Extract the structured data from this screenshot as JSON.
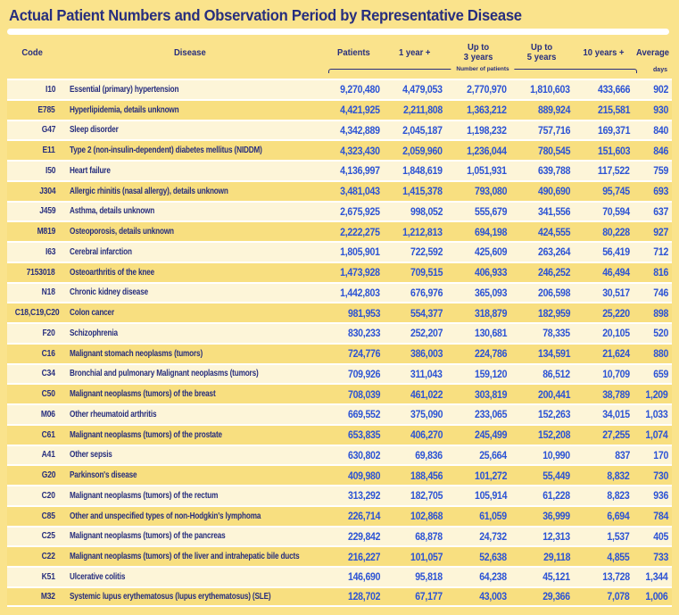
{
  "title": "Actual Patient Numbers and Observation Period by Representative Disease",
  "header": {
    "code": "Code",
    "disease": "Disease",
    "patients": "Patients",
    "y1": "1 year +",
    "y3_line1": "Up to",
    "y3_line2": "3 years",
    "y5_line1": "Up to",
    "y5_line2": "5 years",
    "y10": "10 years +",
    "average": "Average",
    "group_label": "Number of patients",
    "average_unit": "days"
  },
  "colors": {
    "page": "#FAE38C",
    "cream": "#FDF5D8",
    "yellow": "#F8DF80",
    "navy": "#272E7E",
    "blue": "#2C53D5",
    "sep": "#FFFFFF"
  },
  "chart_data": {
    "type": "table",
    "title": "Actual Patient Numbers and Observation Period by Representative Disease",
    "columns": [
      "Code",
      "Disease",
      "Patients",
      "1 year +",
      "Up to 3 years",
      "Up to 5 years",
      "10 years +",
      "Average (days)"
    ],
    "group_note": "Patients through 10 years + columns are number of patients; Average is in days",
    "rows": [
      [
        "I10",
        "Essential (primary) hypertension",
        "9,270,480",
        "4,479,053",
        "2,770,970",
        "1,810,603",
        "433,666",
        "902"
      ],
      [
        "E785",
        "Hyperlipidemia, details unknown",
        "4,421,925",
        "2,211,808",
        "1,363,212",
        "889,924",
        "215,581",
        "930"
      ],
      [
        "G47",
        "Sleep disorder",
        "4,342,889",
        "2,045,187",
        "1,198,232",
        "757,716",
        "169,371",
        "840"
      ],
      [
        "E11",
        "Type 2 (non-insulin-dependent) diabetes mellitus (NIDDM)",
        "4,323,430",
        "2,059,960",
        "1,236,044",
        "780,545",
        "151,603",
        "846"
      ],
      [
        "I50",
        "Heart failure",
        "4,136,997",
        "1,848,619",
        "1,051,931",
        "639,788",
        "117,522",
        "759"
      ],
      [
        "J304",
        "Allergic rhinitis (nasal allergy), details unknown",
        "3,481,043",
        "1,415,378",
        "793,080",
        "490,690",
        "95,745",
        "693"
      ],
      [
        "J459",
        "Asthma, details unknown",
        "2,675,925",
        "998,052",
        "555,679",
        "341,556",
        "70,594",
        "637"
      ],
      [
        "M819",
        "Osteoporosis, details unknown",
        "2,222,275",
        "1,212,813",
        "694,198",
        "424,555",
        "80,228",
        "927"
      ],
      [
        "I63",
        "Cerebral infarction",
        "1,805,901",
        "722,592",
        "425,609",
        "263,264",
        "56,419",
        "712"
      ],
      [
        "7153018",
        "Osteoarthritis of the knee",
        "1,473,928",
        "709,515",
        "406,933",
        "246,252",
        "46,494",
        "816"
      ],
      [
        "N18",
        "Chronic kidney disease",
        "1,442,803",
        "676,976",
        "365,093",
        "206,598",
        "30,517",
        "746"
      ],
      [
        "C18,C19,C20",
        "Colon cancer",
        "981,953",
        "554,377",
        "318,879",
        "182,959",
        "25,220",
        "898"
      ],
      [
        "F20",
        "Schizophrenia",
        "830,233",
        "252,207",
        "130,681",
        "78,335",
        "20,105",
        "520"
      ],
      [
        "C16",
        "Malignant stomach neoplasms (tumors)",
        "724,776",
        "386,003",
        "224,786",
        "134,591",
        "21,624",
        "880"
      ],
      [
        "C34",
        "Bronchial and pulmonary Malignant neoplasms (tumors)",
        "709,926",
        "311,043",
        "159,120",
        "86,512",
        "10,709",
        "659"
      ],
      [
        "C50",
        "Malignant neoplasms (tumors) of the breast",
        "708,039",
        "461,022",
        "303,819",
        "200,441",
        "38,789",
        "1,209"
      ],
      [
        "M06",
        "Other rheumatoid arthritis",
        "669,552",
        "375,090",
        "233,065",
        "152,263",
        "34,015",
        "1,033"
      ],
      [
        "C61",
        "Malignant neoplasms (tumors) of the prostate",
        "653,835",
        "406,270",
        "245,499",
        "152,208",
        "27,255",
        "1,074"
      ],
      [
        "A41",
        "Other sepsis",
        "630,802",
        "69,836",
        "25,664",
        "10,990",
        "837",
        "170"
      ],
      [
        "G20",
        "Parkinson's disease",
        "409,980",
        "188,456",
        "101,272",
        "55,449",
        "8,832",
        "730"
      ],
      [
        "C20",
        "Malignant neoplasms (tumors) of the rectum",
        "313,292",
        "182,705",
        "105,914",
        "61,228",
        "8,823",
        "936"
      ],
      [
        "C85",
        "Other and unspecified types of non-Hodgkin's lymphoma",
        "226,714",
        "102,868",
        "61,059",
        "36,999",
        "6,694",
        "784"
      ],
      [
        "C25",
        "Malignant neoplasms (tumors) of the pancreas",
        "229,842",
        "68,878",
        "24,732",
        "12,313",
        "1,537",
        "405"
      ],
      [
        "C22",
        "Malignant neoplasms (tumors) of the liver and intrahepatic bile ducts",
        "216,227",
        "101,057",
        "52,638",
        "29,118",
        "4,855",
        "733"
      ],
      [
        "K51",
        "Ulcerative colitis",
        "146,690",
        "95,818",
        "64,238",
        "45,121",
        "13,728",
        "1,344"
      ],
      [
        "M32",
        "Systemic lupus erythematosus (lupus erythematosus) (SLE)",
        "128,702",
        "67,177",
        "43,003",
        "29,366",
        "7,078",
        "1,006"
      ]
    ]
  }
}
